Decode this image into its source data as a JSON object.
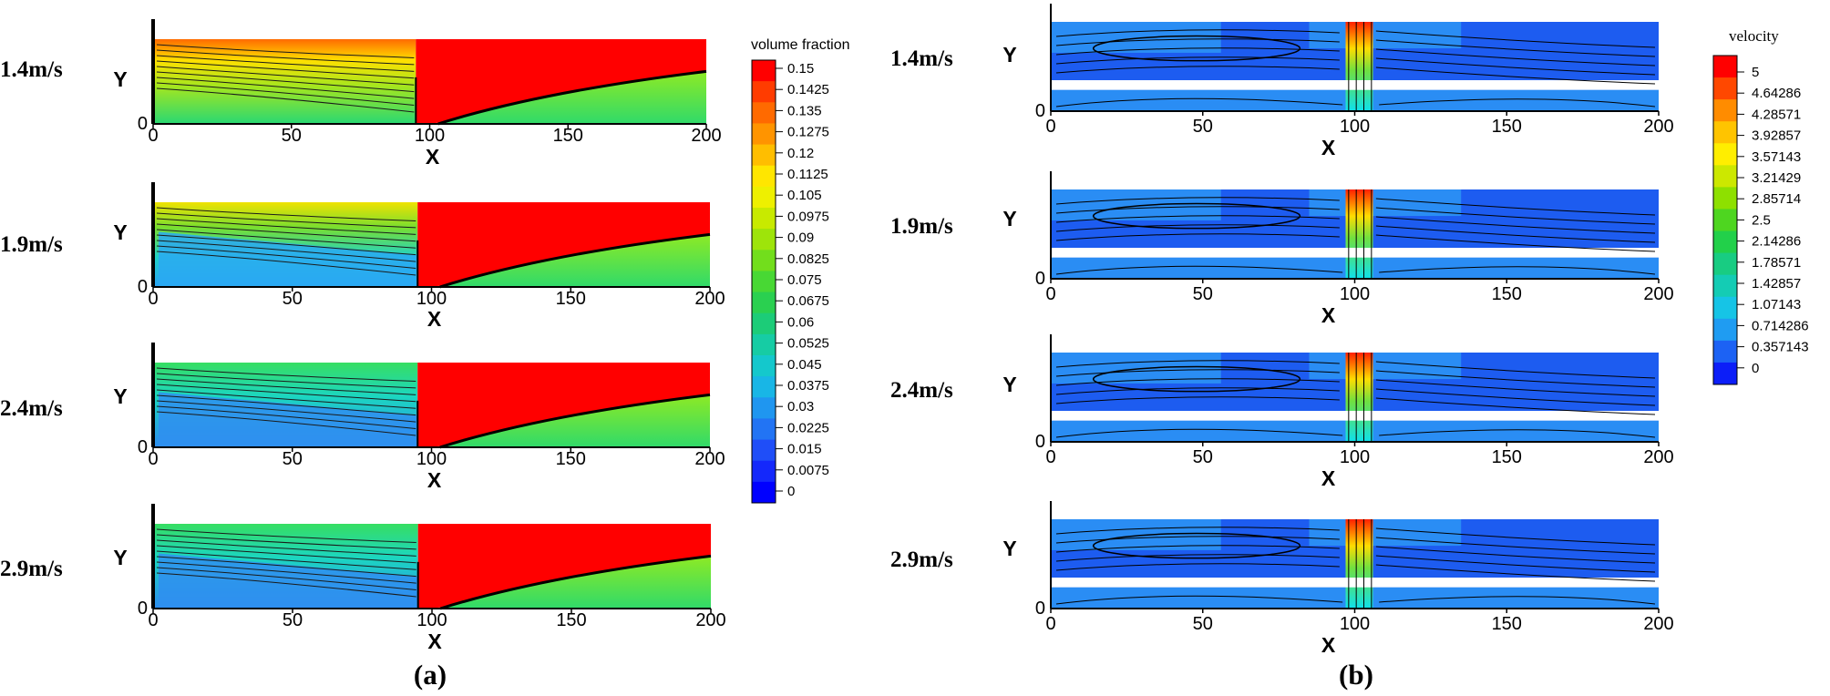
{
  "chart_data": [
    {
      "type": "heatmap",
      "panel": "(a)",
      "colorbar_title": "volume fraction",
      "x_label": "X",
      "y_label": "Y",
      "x_ticks": [
        "0",
        "50",
        "100",
        "150",
        "200"
      ],
      "y_ticks": [
        "0"
      ],
      "xlim": [
        0,
        200
      ],
      "scale": {
        "min": 0,
        "max": 0.15,
        "labels": [
          "0.15",
          "0.1425",
          "0.135",
          "0.1275",
          "0.12",
          "0.1125",
          "0.105",
          "0.0975",
          "0.09",
          "0.0825",
          "0.075",
          "0.0675",
          "0.06",
          "0.0525",
          "0.045",
          "0.0375",
          "0.03",
          "0.0225",
          "0.015",
          "0.0075",
          "0",
          "0"
        ]
      },
      "cases": [
        {
          "label": "1.4m/s",
          "speed": 1.4
        },
        {
          "label": "1.9m/s",
          "speed": 1.9
        },
        {
          "label": "2.4m/s",
          "speed": 2.4
        },
        {
          "label": "2.9m/s",
          "speed": 2.9
        }
      ]
    },
    {
      "type": "heatmap",
      "panel": "(b)",
      "colorbar_title": "velocity",
      "x_label": "X",
      "y_label": "Y",
      "x_ticks": [
        "0",
        "50",
        "100",
        "150",
        "200"
      ],
      "y_ticks": [
        "0"
      ],
      "xlim": [
        0,
        200
      ],
      "scale": {
        "min": 0,
        "max": 5,
        "labels": [
          "5",
          "4.64286",
          "4.28571",
          "3.92857",
          "3.57143",
          "3.21429",
          "2.85714",
          "2.5",
          "2.14286",
          "1.78571",
          "1.42857",
          "1.07143",
          "0.714286",
          "0.357143",
          "0"
        ]
      },
      "cases": [
        {
          "label": "1.4m/s",
          "speed": 1.4
        },
        {
          "label": "1.9m/s",
          "speed": 1.9
        },
        {
          "label": "2.4m/s",
          "speed": 2.4
        },
        {
          "label": "2.9m/s",
          "speed": 2.9
        }
      ]
    }
  ],
  "colors": {
    "scale_top": "#ff0000",
    "scale_bottom": "#0000ff"
  }
}
